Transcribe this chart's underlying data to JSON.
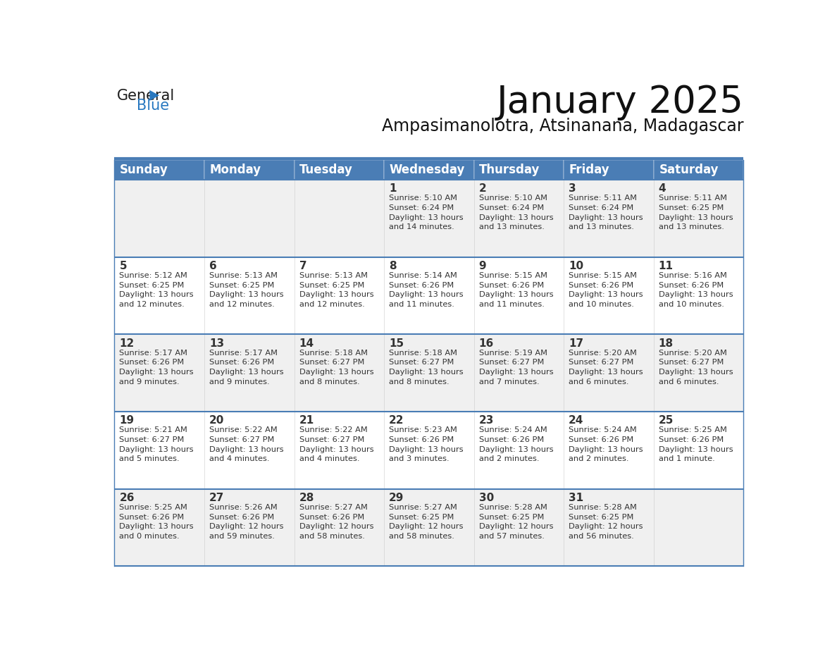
{
  "title": "January 2025",
  "subtitle": "Ampasimanolotra, Atsinanana, Madagascar",
  "header_bg_color": "#4a7db5",
  "header_text_color": "#ffffff",
  "row_bg_gray": "#f0f0f0",
  "row_bg_white": "#ffffff",
  "cell_text_color": "#333333",
  "day_number_color": "#333333",
  "border_color": "#4a7db5",
  "separator_color": "#4a7db5",
  "days_of_week": [
    "Sunday",
    "Monday",
    "Tuesday",
    "Wednesday",
    "Thursday",
    "Friday",
    "Saturday"
  ],
  "weeks": [
    [
      {
        "day": "",
        "info": ""
      },
      {
        "day": "",
        "info": ""
      },
      {
        "day": "",
        "info": ""
      },
      {
        "day": "1",
        "info": "Sunrise: 5:10 AM\nSunset: 6:24 PM\nDaylight: 13 hours\nand 14 minutes."
      },
      {
        "day": "2",
        "info": "Sunrise: 5:10 AM\nSunset: 6:24 PM\nDaylight: 13 hours\nand 13 minutes."
      },
      {
        "day": "3",
        "info": "Sunrise: 5:11 AM\nSunset: 6:24 PM\nDaylight: 13 hours\nand 13 minutes."
      },
      {
        "day": "4",
        "info": "Sunrise: 5:11 AM\nSunset: 6:25 PM\nDaylight: 13 hours\nand 13 minutes."
      }
    ],
    [
      {
        "day": "5",
        "info": "Sunrise: 5:12 AM\nSunset: 6:25 PM\nDaylight: 13 hours\nand 12 minutes."
      },
      {
        "day": "6",
        "info": "Sunrise: 5:13 AM\nSunset: 6:25 PM\nDaylight: 13 hours\nand 12 minutes."
      },
      {
        "day": "7",
        "info": "Sunrise: 5:13 AM\nSunset: 6:25 PM\nDaylight: 13 hours\nand 12 minutes."
      },
      {
        "day": "8",
        "info": "Sunrise: 5:14 AM\nSunset: 6:26 PM\nDaylight: 13 hours\nand 11 minutes."
      },
      {
        "day": "9",
        "info": "Sunrise: 5:15 AM\nSunset: 6:26 PM\nDaylight: 13 hours\nand 11 minutes."
      },
      {
        "day": "10",
        "info": "Sunrise: 5:15 AM\nSunset: 6:26 PM\nDaylight: 13 hours\nand 10 minutes."
      },
      {
        "day": "11",
        "info": "Sunrise: 5:16 AM\nSunset: 6:26 PM\nDaylight: 13 hours\nand 10 minutes."
      }
    ],
    [
      {
        "day": "12",
        "info": "Sunrise: 5:17 AM\nSunset: 6:26 PM\nDaylight: 13 hours\nand 9 minutes."
      },
      {
        "day": "13",
        "info": "Sunrise: 5:17 AM\nSunset: 6:26 PM\nDaylight: 13 hours\nand 9 minutes."
      },
      {
        "day": "14",
        "info": "Sunrise: 5:18 AM\nSunset: 6:27 PM\nDaylight: 13 hours\nand 8 minutes."
      },
      {
        "day": "15",
        "info": "Sunrise: 5:18 AM\nSunset: 6:27 PM\nDaylight: 13 hours\nand 8 minutes."
      },
      {
        "day": "16",
        "info": "Sunrise: 5:19 AM\nSunset: 6:27 PM\nDaylight: 13 hours\nand 7 minutes."
      },
      {
        "day": "17",
        "info": "Sunrise: 5:20 AM\nSunset: 6:27 PM\nDaylight: 13 hours\nand 6 minutes."
      },
      {
        "day": "18",
        "info": "Sunrise: 5:20 AM\nSunset: 6:27 PM\nDaylight: 13 hours\nand 6 minutes."
      }
    ],
    [
      {
        "day": "19",
        "info": "Sunrise: 5:21 AM\nSunset: 6:27 PM\nDaylight: 13 hours\nand 5 minutes."
      },
      {
        "day": "20",
        "info": "Sunrise: 5:22 AM\nSunset: 6:27 PM\nDaylight: 13 hours\nand 4 minutes."
      },
      {
        "day": "21",
        "info": "Sunrise: 5:22 AM\nSunset: 6:27 PM\nDaylight: 13 hours\nand 4 minutes."
      },
      {
        "day": "22",
        "info": "Sunrise: 5:23 AM\nSunset: 6:26 PM\nDaylight: 13 hours\nand 3 minutes."
      },
      {
        "day": "23",
        "info": "Sunrise: 5:24 AM\nSunset: 6:26 PM\nDaylight: 13 hours\nand 2 minutes."
      },
      {
        "day": "24",
        "info": "Sunrise: 5:24 AM\nSunset: 6:26 PM\nDaylight: 13 hours\nand 2 minutes."
      },
      {
        "day": "25",
        "info": "Sunrise: 5:25 AM\nSunset: 6:26 PM\nDaylight: 13 hours\nand 1 minute."
      }
    ],
    [
      {
        "day": "26",
        "info": "Sunrise: 5:25 AM\nSunset: 6:26 PM\nDaylight: 13 hours\nand 0 minutes."
      },
      {
        "day": "27",
        "info": "Sunrise: 5:26 AM\nSunset: 6:26 PM\nDaylight: 12 hours\nand 59 minutes."
      },
      {
        "day": "28",
        "info": "Sunrise: 5:27 AM\nSunset: 6:26 PM\nDaylight: 12 hours\nand 58 minutes."
      },
      {
        "day": "29",
        "info": "Sunrise: 5:27 AM\nSunset: 6:25 PM\nDaylight: 12 hours\nand 58 minutes."
      },
      {
        "day": "30",
        "info": "Sunrise: 5:28 AM\nSunset: 6:25 PM\nDaylight: 12 hours\nand 57 minutes."
      },
      {
        "day": "31",
        "info": "Sunrise: 5:28 AM\nSunset: 6:25 PM\nDaylight: 12 hours\nand 56 minutes."
      },
      {
        "day": "",
        "info": ""
      }
    ]
  ],
  "logo_color_general": "#1a1a1a",
  "logo_color_blue": "#2878c0",
  "logo_triangle_color": "#2878c0",
  "title_fontsize": 38,
  "subtitle_fontsize": 17,
  "header_fontsize": 12,
  "day_number_fontsize": 11,
  "cell_info_fontsize": 8.2,
  "logo_general_fontsize": 15,
  "logo_blue_fontsize": 15
}
